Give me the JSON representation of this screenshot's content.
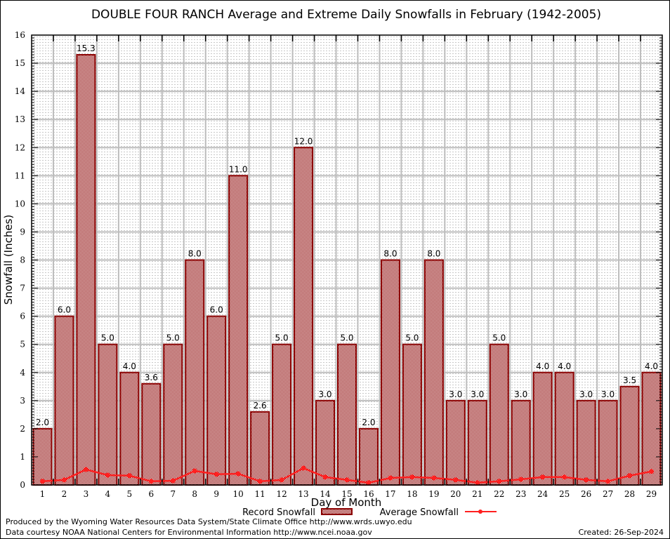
{
  "chart_data": {
    "type": "bar",
    "title": "DOUBLE FOUR RANCH Average and Extreme Daily Snowfalls in February (1942-2005)",
    "xlabel": "Day of Month",
    "ylabel": "Snowfall (Inches)",
    "ylim": [
      0,
      16
    ],
    "yticks": [
      "0",
      "1",
      "2",
      "3",
      "4",
      "5",
      "6",
      "7",
      "8",
      "9",
      "10",
      "11",
      "12",
      "13",
      "14",
      "15",
      "16"
    ],
    "categories": [
      "1",
      "2",
      "3",
      "4",
      "5",
      "6",
      "7",
      "8",
      "9",
      "10",
      "11",
      "12",
      "13",
      "14",
      "15",
      "16",
      "17",
      "18",
      "19",
      "20",
      "21",
      "22",
      "23",
      "24",
      "25",
      "26",
      "27",
      "28",
      "29"
    ],
    "grid": true,
    "legend_position": "bottom",
    "series": [
      {
        "name": "Record Snowfall",
        "kind": "bar",
        "color": "#8b0000",
        "values": [
          2.0,
          6.0,
          15.3,
          5.0,
          4.0,
          3.6,
          5.0,
          8.0,
          6.0,
          11.0,
          2.6,
          5.0,
          12.0,
          3.0,
          5.0,
          2.0,
          8.0,
          5.0,
          8.0,
          3.0,
          3.0,
          5.0,
          3.0,
          4.0,
          4.0,
          3.0,
          3.0,
          3.5,
          4.0
        ],
        "labels": [
          "2.0",
          "6.0",
          "15.3",
          "5.0",
          "4.0",
          "3.6",
          "5.0",
          "8.0",
          "6.0",
          "11.0",
          "2.6",
          "5.0",
          "12.0",
          "3.0",
          "5.0",
          "2.0",
          "8.0",
          "5.0",
          "8.0",
          "3.0",
          "3.0",
          "5.0",
          "3.0",
          "4.0",
          "4.0",
          "3.0",
          "3.0",
          "3.5",
          "4.0"
        ]
      },
      {
        "name": "Average Snowfall",
        "kind": "line",
        "color": "#ff2020",
        "values": [
          0.13,
          0.18,
          0.55,
          0.35,
          0.33,
          0.13,
          0.15,
          0.5,
          0.38,
          0.4,
          0.13,
          0.18,
          0.6,
          0.28,
          0.18,
          0.08,
          0.25,
          0.28,
          0.25,
          0.18,
          0.08,
          0.13,
          0.2,
          0.28,
          0.28,
          0.18,
          0.13,
          0.33,
          0.48
        ]
      }
    ]
  },
  "footer": {
    "produced_by": "Produced by the Wyoming Water Resources Data System/State Climate Office http://www.wrds.uwyo.edu",
    "data_courtesy": "Data courtesy NOAA National Centers for Environmental Information http://www.ncei.noaa.gov",
    "created": "Created: 26-Sep-2024"
  }
}
